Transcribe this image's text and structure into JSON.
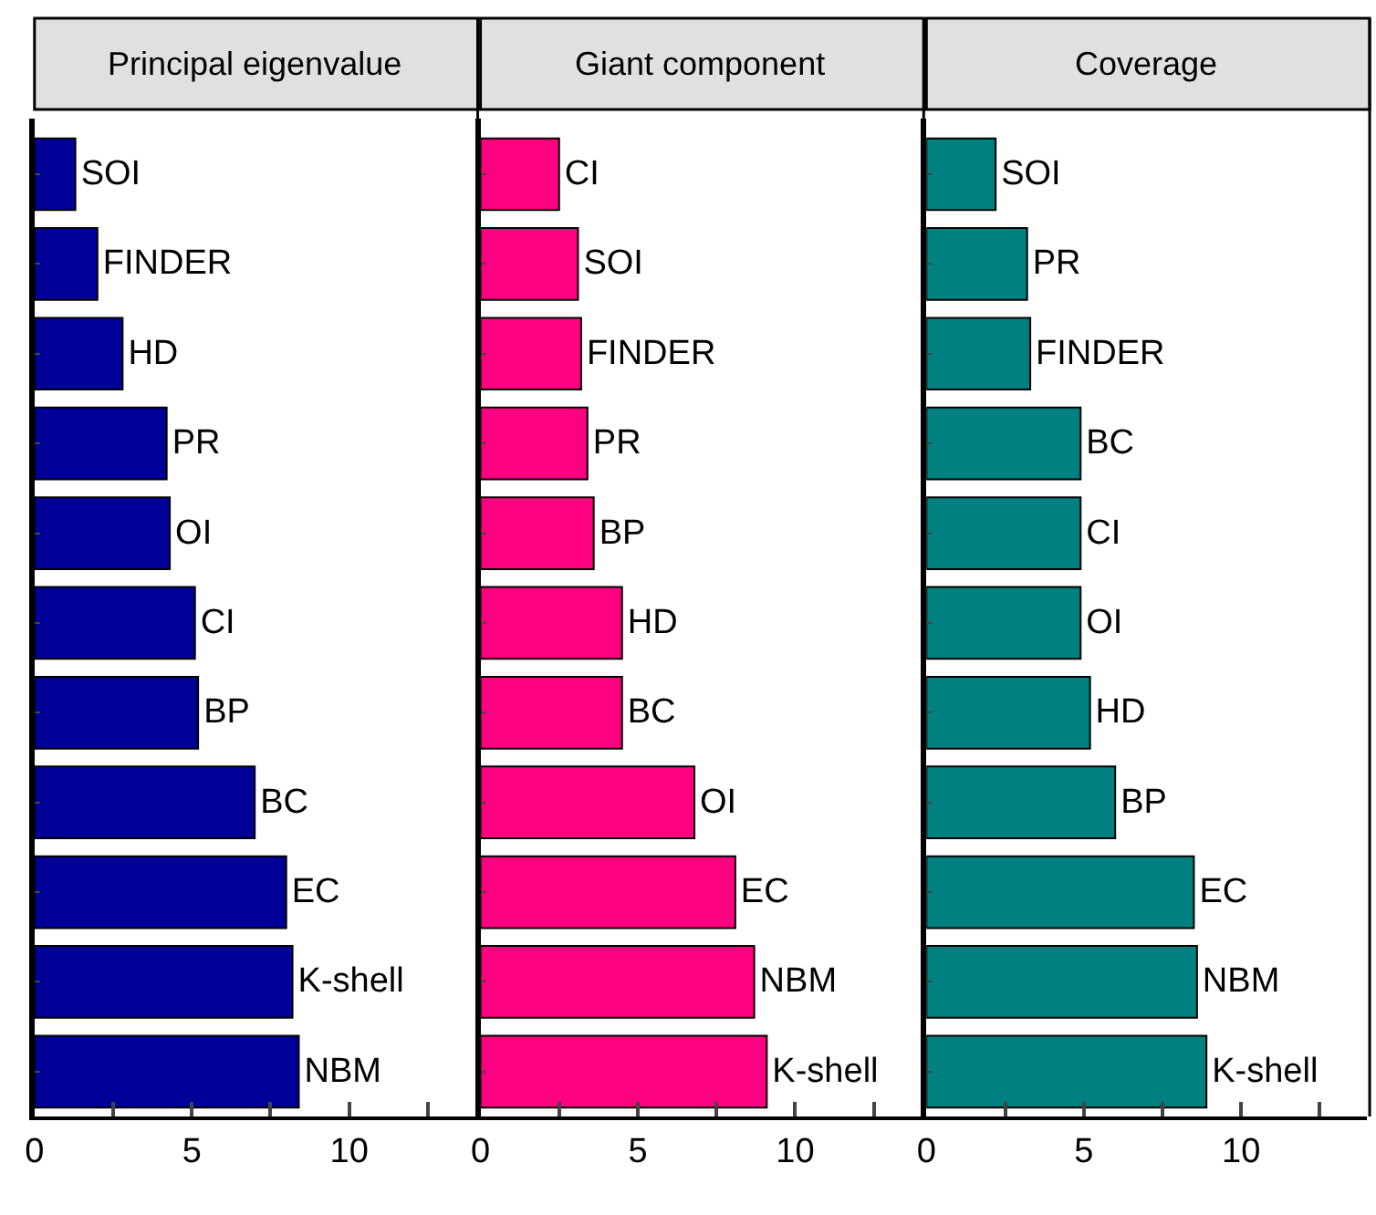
{
  "chart_data": [
    {
      "type": "bar",
      "orientation": "horizontal",
      "title": "Principal eigenvalue",
      "categories": [
        "SOI",
        "FINDER",
        "HD",
        "PR",
        "OI",
        "CI",
        "BP",
        "BC",
        "EC",
        "K-shell",
        "NBM"
      ],
      "values": [
        1.3,
        2.0,
        2.8,
        4.2,
        4.3,
        5.1,
        5.2,
        7.0,
        8.0,
        8.2,
        8.4
      ],
      "color": "#000099",
      "xlim": [
        0,
        14
      ],
      "xticks": [
        0,
        {
          "value": 2.5,
          "label": null
        },
        5,
        {
          "value": 7.5,
          "label": null
        },
        10,
        {
          "value": 12.5,
          "label": null
        }
      ],
      "tick_labels": "x"
    },
    {
      "type": "bar",
      "orientation": "horizontal",
      "title": "Giant component",
      "categories": [
        "CI",
        "SOI",
        "FINDER",
        "PR",
        "BP",
        "HD",
        "BC",
        "OI",
        "EC",
        "NBM",
        "K-shell"
      ],
      "values": [
        2.5,
        3.1,
        3.2,
        3.4,
        3.6,
        4.5,
        4.5,
        6.8,
        8.1,
        8.7,
        9.1
      ],
      "color": "#ff0080",
      "xlim": [
        0,
        14
      ],
      "xticks": [
        0,
        {
          "value": 2.5,
          "label": null
        },
        5,
        {
          "value": 7.5,
          "label": null
        },
        10,
        {
          "value": 12.5,
          "label": null
        }
      ],
      "tick_labels": "x"
    },
    {
      "type": "bar",
      "orientation": "horizontal",
      "title": "Coverage",
      "categories": [
        "SOI",
        "PR",
        "FINDER",
        "BC",
        "CI",
        "OI",
        "HD",
        "BP",
        "EC",
        "NBM",
        "K-shell"
      ],
      "values": [
        2.2,
        3.2,
        3.3,
        4.9,
        4.9,
        4.9,
        5.2,
        6.0,
        8.5,
        8.6,
        8.9
      ],
      "color": "#008080",
      "xlim": [
        0,
        14
      ],
      "xticks": [
        0,
        {
          "value": 2.5,
          "label": null
        },
        5,
        {
          "value": 7.5,
          "label": null
        },
        10,
        {
          "value": 12.5,
          "label": null
        }
      ],
      "tick_labels": "x"
    }
  ]
}
